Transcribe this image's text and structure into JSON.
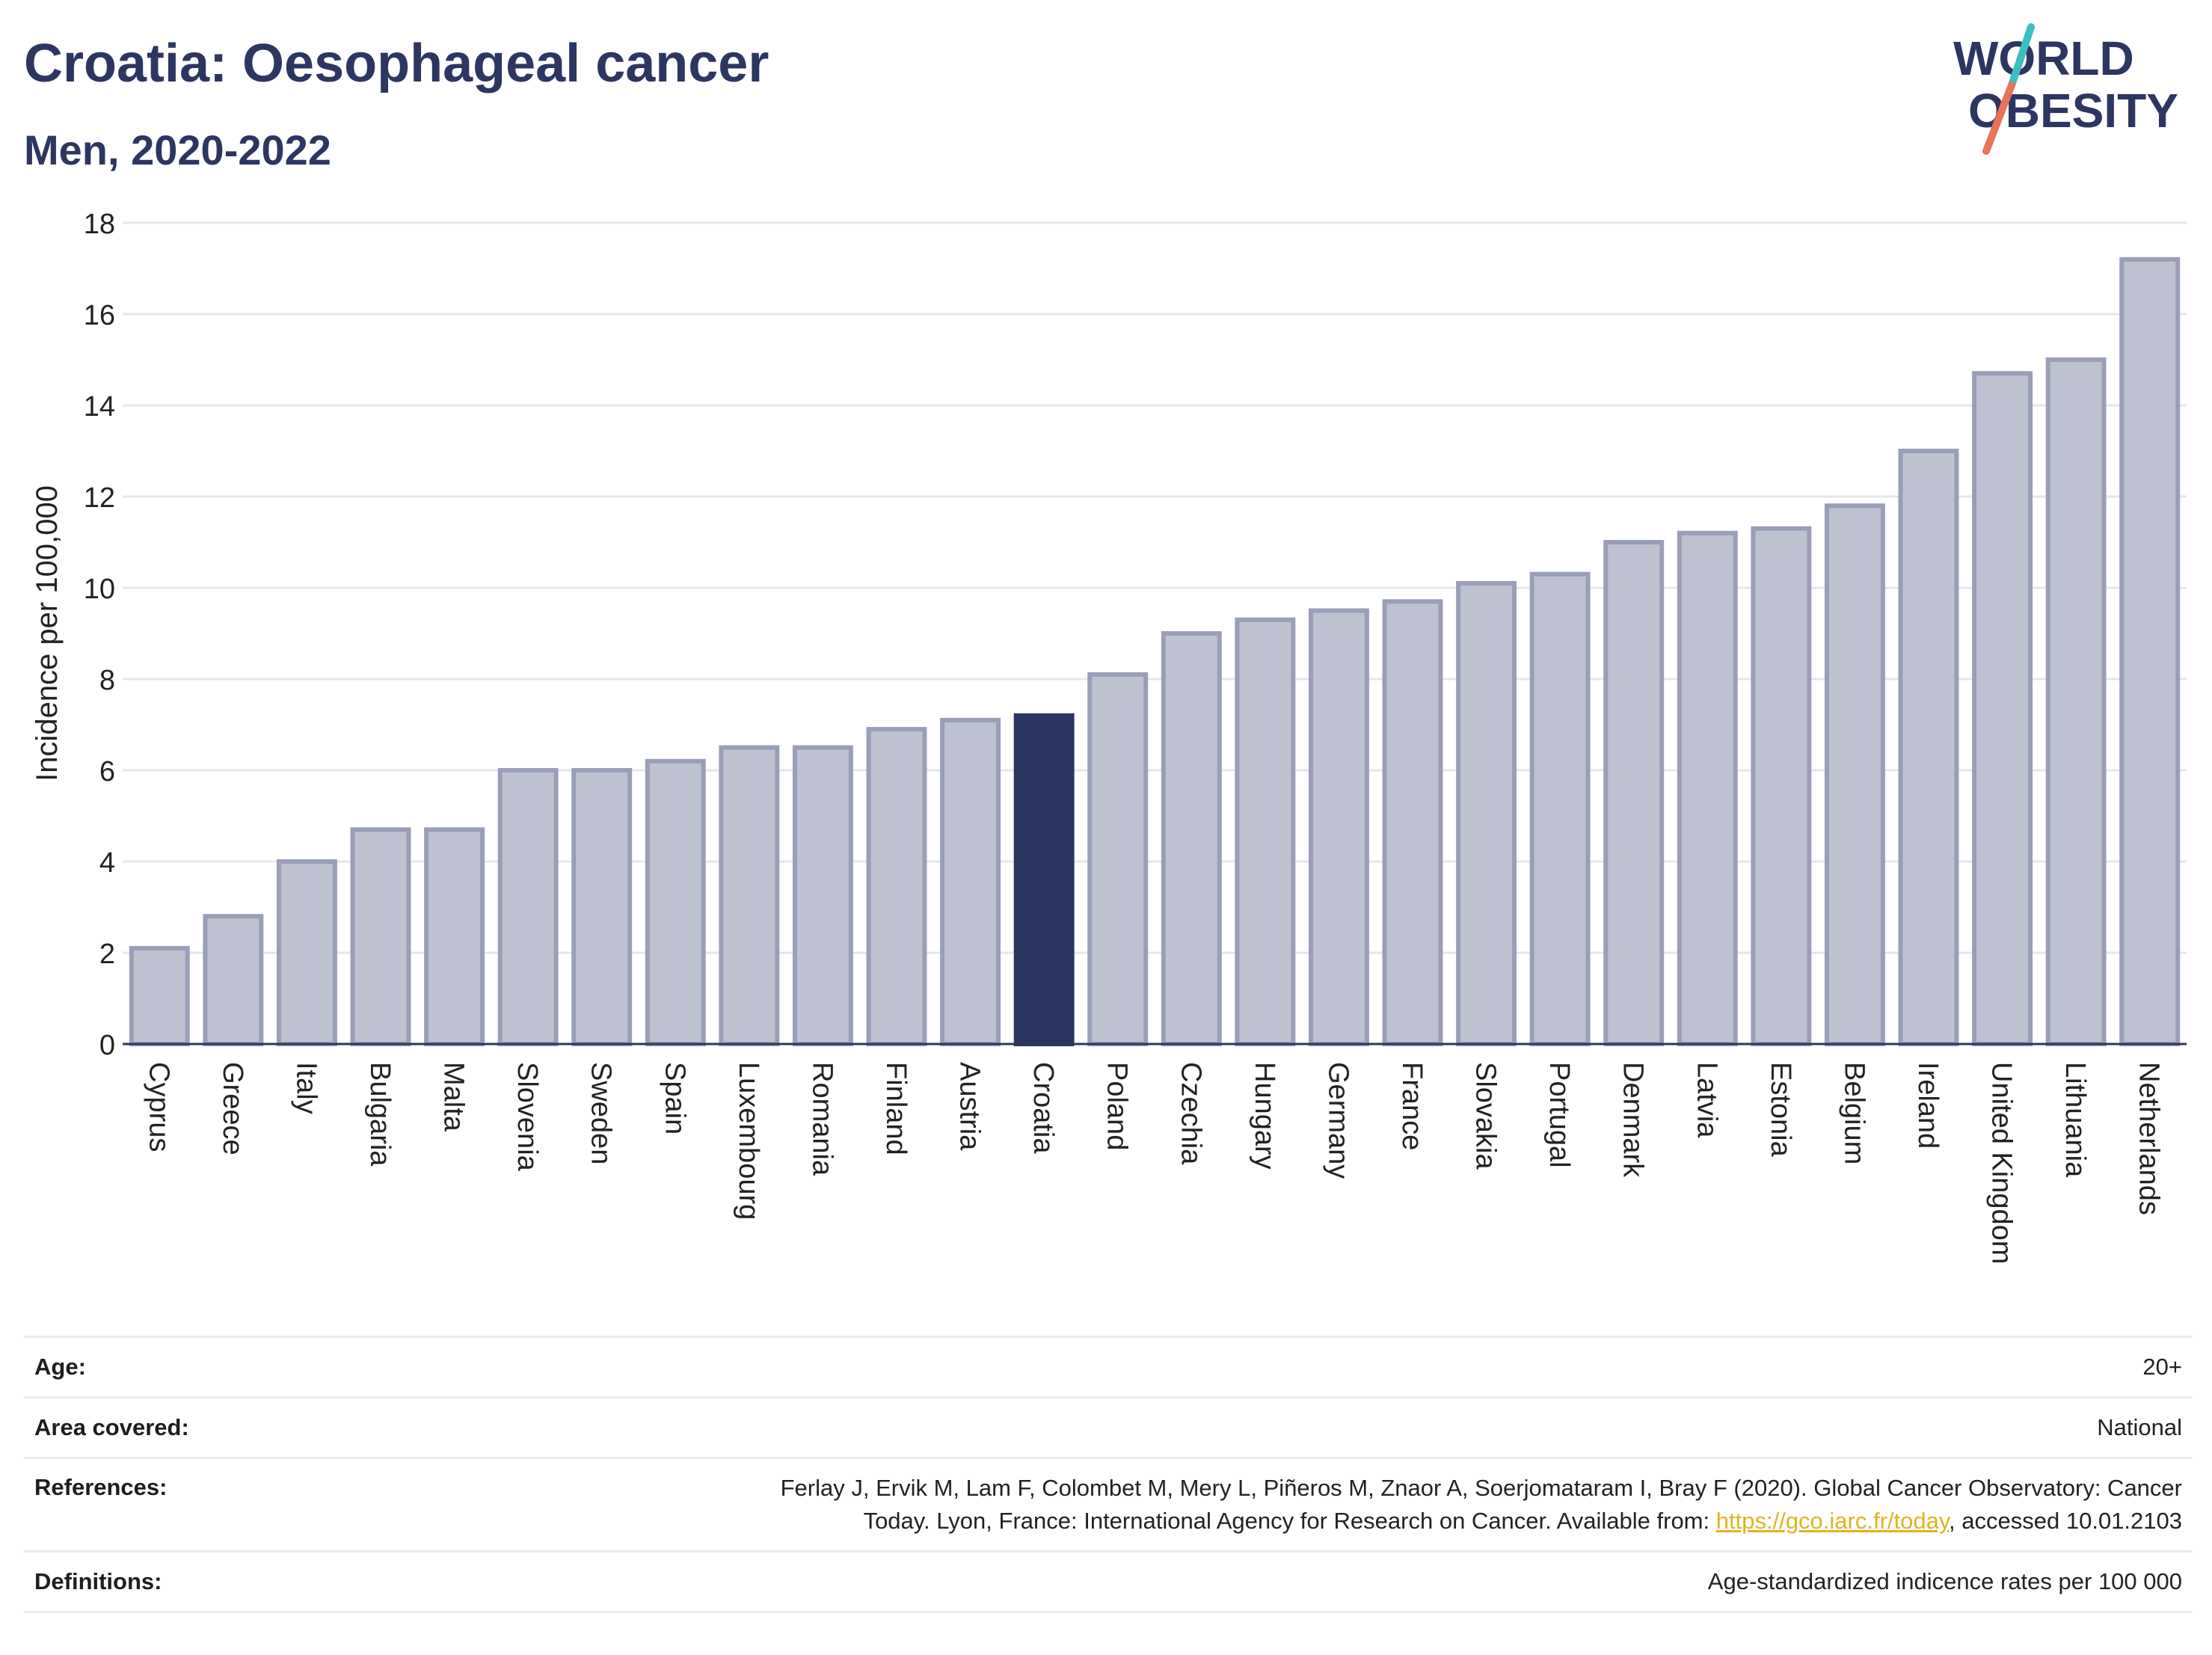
{
  "title": "Croatia: Oesophageal cancer",
  "subtitle": "Men, 2020-2022",
  "logo": {
    "line1": "WORLD",
    "line2": "OBESITY",
    "text_color": "#2d3561",
    "slash_teal": "#3bbfbf",
    "slash_coral": "#e8735a"
  },
  "colors": {
    "bar": "#bec1cf",
    "bar_border": "#9a9eb8",
    "highlight": "#2a3561",
    "grid": "#e6e7eb",
    "axis": "#2d3561"
  },
  "chart_data": {
    "type": "bar",
    "ylabel": "Incidence per 100,000",
    "ylim": [
      0,
      18
    ],
    "yticks": [
      0,
      2,
      4,
      6,
      8,
      10,
      12,
      14,
      16,
      18
    ],
    "grid": true,
    "highlight": "Croatia",
    "categories": [
      "Cyprus",
      "Greece",
      "Italy",
      "Bulgaria",
      "Malta",
      "Slovenia",
      "Sweden",
      "Spain",
      "Luxembourg",
      "Romania",
      "Finland",
      "Austria",
      "Croatia",
      "Poland",
      "Czechia",
      "Hungary",
      "Germany",
      "France",
      "Slovakia",
      "Portugal",
      "Denmark",
      "Latvia",
      "Estonia",
      "Belgium",
      "Ireland",
      "United Kingdom",
      "Lithuania",
      "Netherlands"
    ],
    "values": [
      2.1,
      2.8,
      4.0,
      4.7,
      4.7,
      6.0,
      6.0,
      6.2,
      6.5,
      6.5,
      6.9,
      7.1,
      7.2,
      8.1,
      9.0,
      9.3,
      9.5,
      9.7,
      10.1,
      10.3,
      11.0,
      11.2,
      11.3,
      11.8,
      13.0,
      14.7,
      15.0,
      17.2
    ]
  },
  "info": {
    "age_label": "Age:",
    "age_value": "20+",
    "area_label": "Area covered:",
    "area_value": "National",
    "references_label": "References:",
    "references_line1": "Ferlay J, Ervik M, Lam F, Colombet M, Mery L, Piñeros M, Znaor A, Soerjomataram I, Bray F (2020). Global Cancer Observatory: Cancer",
    "references_line2_pre": "Today. Lyon, France: International Agency for Research on Cancer. Available from: ",
    "references_link": "https://gco.iarc.fr/today",
    "references_line2_post": ", accessed 10.01.2103",
    "definitions_label": "Definitions:",
    "definitions_value": "Age-standardized indicence rates per 100 000"
  }
}
